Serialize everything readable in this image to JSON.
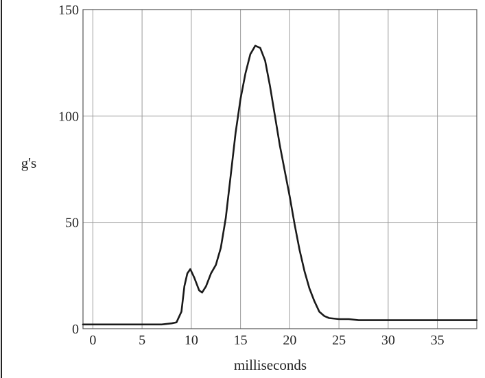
{
  "chart_data": {
    "type": "line",
    "title": "",
    "xlabel": "milliseconds",
    "ylabel": "g's",
    "xlim": [
      -1,
      39
    ],
    "ylim": [
      0,
      150
    ],
    "x_ticks": [
      0,
      5,
      10,
      15,
      20,
      25,
      30,
      35
    ],
    "y_ticks": [
      0,
      50,
      100,
      150
    ],
    "grid": true,
    "series": [
      {
        "values": [
          [
            -1,
            2
          ],
          [
            0,
            2
          ],
          [
            2,
            2
          ],
          [
            4,
            2
          ],
          [
            6,
            2
          ],
          [
            7,
            2
          ],
          [
            8,
            2.5
          ],
          [
            8.5,
            3
          ],
          [
            9,
            8
          ],
          [
            9.3,
            20
          ],
          [
            9.6,
            26
          ],
          [
            9.9,
            28
          ],
          [
            10.3,
            24
          ],
          [
            10.8,
            18
          ],
          [
            11.1,
            17
          ],
          [
            11.5,
            20
          ],
          [
            12,
            26
          ],
          [
            12.5,
            30
          ],
          [
            13,
            38
          ],
          [
            13.5,
            52
          ],
          [
            14,
            72
          ],
          [
            14.5,
            92
          ],
          [
            15,
            108
          ],
          [
            15.5,
            120
          ],
          [
            16,
            129
          ],
          [
            16.5,
            133
          ],
          [
            17,
            132
          ],
          [
            17.5,
            126
          ],
          [
            18,
            114
          ],
          [
            18.5,
            100
          ],
          [
            19,
            86
          ],
          [
            19.5,
            74
          ],
          [
            20,
            62
          ],
          [
            20.5,
            49
          ],
          [
            21,
            37
          ],
          [
            21.5,
            27
          ],
          [
            22,
            19
          ],
          [
            22.5,
            13
          ],
          [
            23,
            8
          ],
          [
            23.5,
            6
          ],
          [
            24,
            5
          ],
          [
            25,
            4.5
          ],
          [
            26,
            4.5
          ],
          [
            27,
            4
          ],
          [
            28,
            4
          ],
          [
            30,
            4
          ],
          [
            32,
            4
          ],
          [
            34,
            4
          ],
          [
            36,
            4
          ],
          [
            38,
            4
          ],
          [
            39,
            4
          ]
        ]
      }
    ]
  }
}
